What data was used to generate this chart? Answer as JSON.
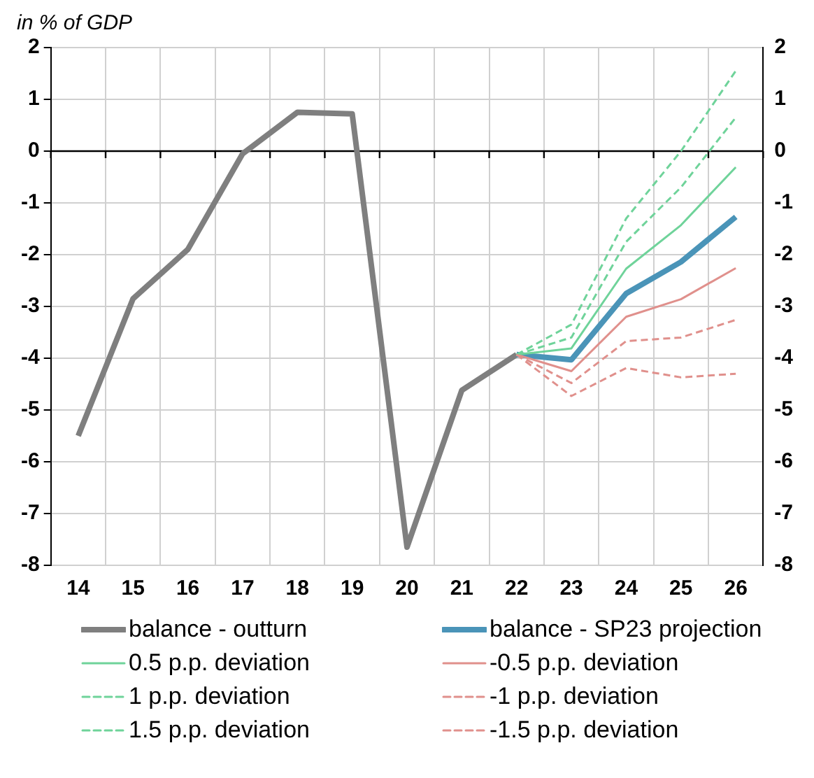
{
  "chart_data": {
    "type": "line",
    "subtitle": "in % of GDP",
    "categories": [
      "14",
      "15",
      "16",
      "17",
      "18",
      "19",
      "20",
      "21",
      "22",
      "23",
      "24",
      "25",
      "26"
    ],
    "ylim": [
      -8,
      2
    ],
    "yticks": [
      -8,
      -7,
      -6,
      -5,
      -4,
      -3,
      -2,
      -1,
      0,
      1,
      2
    ],
    "y2lim": [
      -8,
      2
    ],
    "y2ticks": [
      -8,
      -7,
      -6,
      -5,
      -4,
      -3,
      -2,
      -1,
      0,
      1,
      2
    ],
    "grid": true,
    "legend": "bottom",
    "marker": "none",
    "line_style": "solid",
    "ref_lines": [
      {
        "axis": "y",
        "value": 0,
        "color": "#000000"
      }
    ],
    "series": [
      {
        "name": "balance - outturn",
        "color": "#7f7f7f",
        "values": [
          -5.5,
          -2.85,
          -1.9,
          -0.05,
          0.75,
          0.72,
          -7.65,
          -4.62,
          -3.93,
          null,
          null,
          null,
          null
        ]
      },
      {
        "name": "balance - SP23 projection",
        "color": "#4a94b8",
        "values": [
          null,
          null,
          null,
          null,
          null,
          null,
          null,
          null,
          -3.93,
          -4.03,
          -2.75,
          -2.14,
          -1.27
        ]
      },
      {
        "name": "0.5 p.p. deviation",
        "color": "#6fd39a",
        "values": [
          null,
          null,
          null,
          null,
          null,
          null,
          null,
          null,
          -3.93,
          -3.81,
          -2.27,
          -1.43,
          -0.31
        ]
      },
      {
        "name": "-0.5 p.p. deviation",
        "color": "#e0908c",
        "values": [
          null,
          null,
          null,
          null,
          null,
          null,
          null,
          null,
          -3.93,
          -4.25,
          -3.2,
          -2.86,
          -2.26
        ]
      },
      {
        "name": "1 p.p. deviation",
        "color": "#6fd39a",
        "line_style": "dashed",
        "values": [
          null,
          null,
          null,
          null,
          null,
          null,
          null,
          null,
          -3.93,
          -3.6,
          -1.75,
          -0.7,
          0.65
        ]
      },
      {
        "name": "-1 p.p. deviation",
        "color": "#e0908c",
        "line_style": "dashed",
        "values": [
          null,
          null,
          null,
          null,
          null,
          null,
          null,
          null,
          -3.93,
          -4.48,
          -3.67,
          -3.6,
          -3.26
        ]
      },
      {
        "name": "1.5 p.p. deviation",
        "color": "#6fd39a",
        "line_style": "dashed",
        "values": [
          null,
          null,
          null,
          null,
          null,
          null,
          null,
          null,
          -3.93,
          -3.35,
          -1.3,
          0.0,
          1.55
        ]
      },
      {
        "name": "-1.5 p.p. deviation",
        "color": "#e0908c",
        "line_style": "dashed",
        "values": [
          null,
          null,
          null,
          null,
          null,
          null,
          null,
          null,
          -3.93,
          -4.73,
          -4.19,
          -4.37,
          -4.3
        ]
      }
    ]
  }
}
